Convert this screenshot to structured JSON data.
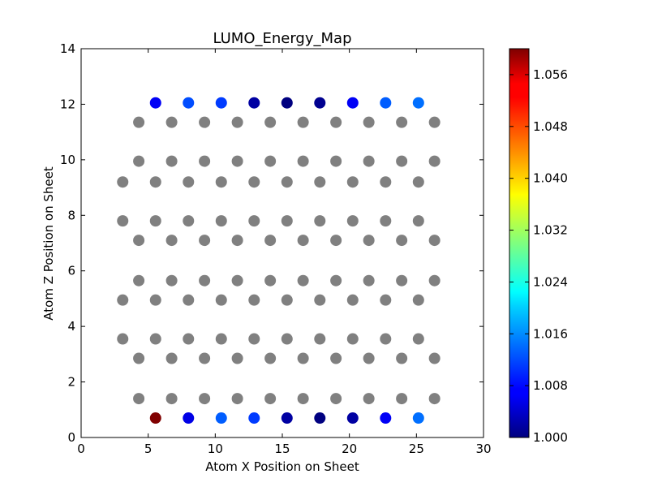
{
  "chart_data": {
    "type": "scatter",
    "title": "LUMO_Energy_Map",
    "xlabel": "Atom X Position on Sheet",
    "ylabel": "Atom Z Position on Sheet",
    "xlim": [
      0,
      30
    ],
    "ylim": [
      0,
      14
    ],
    "xticks": [
      0,
      5,
      10,
      15,
      20,
      25,
      30
    ],
    "yticks": [
      0,
      2,
      4,
      6,
      8,
      10,
      12,
      14
    ],
    "grid": false,
    "colormap": "jet",
    "colorbar": {
      "min": 1.0,
      "max": 1.06,
      "ticks": [
        "1.000",
        "1.008",
        "1.016",
        "1.024",
        "1.032",
        "1.040",
        "1.048",
        "1.056"
      ]
    },
    "neutral_color": "#808080",
    "neutral_rows": [
      {
        "z": 11.35,
        "x": [
          4.3,
          6.75,
          9.2,
          11.65,
          14.1,
          16.55,
          19.0,
          21.45,
          23.9,
          26.35
        ]
      },
      {
        "z": 9.95,
        "x": [
          4.3,
          6.75,
          9.2,
          11.65,
          14.1,
          16.55,
          19.0,
          21.45,
          23.9,
          26.35
        ]
      },
      {
        "z": 9.2,
        "x": [
          3.1,
          5.55,
          8.0,
          10.45,
          12.9,
          15.35,
          17.8,
          20.25,
          22.7,
          25.15
        ]
      },
      {
        "z": 7.8,
        "x": [
          3.1,
          5.55,
          8.0,
          10.45,
          12.9,
          15.35,
          17.8,
          20.25,
          22.7,
          25.15
        ]
      },
      {
        "z": 7.1,
        "x": [
          4.3,
          6.75,
          9.2,
          11.65,
          14.1,
          16.55,
          19.0,
          21.45,
          23.9,
          26.35
        ]
      },
      {
        "z": 5.65,
        "x": [
          4.3,
          6.75,
          9.2,
          11.65,
          14.1,
          16.55,
          19.0,
          21.45,
          23.9,
          26.35
        ]
      },
      {
        "z": 4.95,
        "x": [
          3.1,
          5.55,
          8.0,
          10.45,
          12.9,
          15.35,
          17.8,
          20.25,
          22.7,
          25.15
        ]
      },
      {
        "z": 3.55,
        "x": [
          3.1,
          5.55,
          8.0,
          10.45,
          12.9,
          15.35,
          17.8,
          20.25,
          22.7,
          25.15
        ]
      },
      {
        "z": 2.85,
        "x": [
          4.3,
          6.75,
          9.2,
          11.65,
          14.1,
          16.55,
          19.0,
          21.45,
          23.9,
          26.35
        ]
      },
      {
        "z": 1.4,
        "x": [
          4.3,
          6.75,
          9.2,
          11.65,
          14.1,
          16.55,
          19.0,
          21.45,
          23.9,
          26.35
        ]
      }
    ],
    "colored_points": [
      {
        "x": 5.55,
        "z": 12.05,
        "value": 1.007
      },
      {
        "x": 8.0,
        "z": 12.05,
        "value": 1.012
      },
      {
        "x": 10.45,
        "z": 12.05,
        "value": 1.011
      },
      {
        "x": 12.9,
        "z": 12.05,
        "value": 1.002
      },
      {
        "x": 15.35,
        "z": 12.05,
        "value": 1.0
      },
      {
        "x": 17.8,
        "z": 12.05,
        "value": 1.001
      },
      {
        "x": 20.25,
        "z": 12.05,
        "value": 1.007
      },
      {
        "x": 22.7,
        "z": 12.05,
        "value": 1.013
      },
      {
        "x": 25.15,
        "z": 12.05,
        "value": 1.014
      },
      {
        "x": 5.55,
        "z": 0.7,
        "value": 1.06
      },
      {
        "x": 8.0,
        "z": 0.7,
        "value": 1.006
      },
      {
        "x": 10.45,
        "z": 0.7,
        "value": 1.013
      },
      {
        "x": 12.9,
        "z": 0.7,
        "value": 1.011
      },
      {
        "x": 15.35,
        "z": 0.7,
        "value": 1.002
      },
      {
        "x": 17.8,
        "z": 0.7,
        "value": 1.0
      },
      {
        "x": 20.25,
        "z": 0.7,
        "value": 1.002
      },
      {
        "x": 22.7,
        "z": 0.7,
        "value": 1.007
      },
      {
        "x": 25.15,
        "z": 0.7,
        "value": 1.014
      }
    ]
  }
}
